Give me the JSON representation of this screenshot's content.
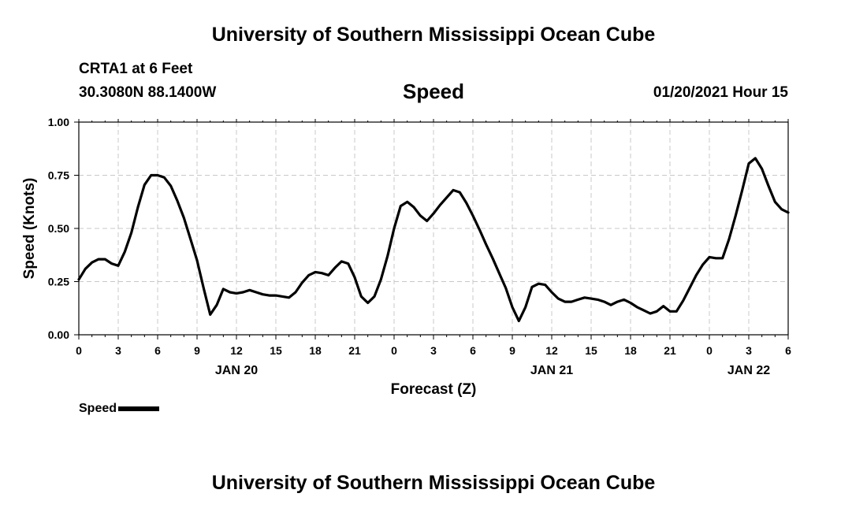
{
  "header": {
    "title": "University of Southern Mississippi Ocean Cube",
    "station": "CRTA1 at 6 Feet",
    "coordinates": "30.3080N 88.1400W",
    "variable": "Speed",
    "datetime": "01/20/2021 Hour 15"
  },
  "footer": {
    "title": "University of Southern Mississippi Ocean Cube"
  },
  "legend": {
    "label": "Speed",
    "placement": "bottom-left"
  },
  "chart_data": {
    "type": "line",
    "title": "Speed",
    "xlabel": "Forecast (Z)",
    "ylabel": "Speed (Knots)",
    "ylim": [
      0,
      1
    ],
    "yticks": [
      "0.00",
      "0.25",
      "0.50",
      "0.75",
      "1.00"
    ],
    "xlim_hours": [
      0,
      54
    ],
    "xtick_labels": [
      "0",
      "3",
      "6",
      "9",
      "12",
      "15",
      "18",
      "21",
      "0",
      "3",
      "6",
      "9",
      "12",
      "15",
      "18",
      "21",
      "0",
      "3",
      "6"
    ],
    "date_labels": [
      {
        "hour": 12,
        "label": "JAN 20"
      },
      {
        "hour": 36,
        "label": "JAN 21"
      },
      {
        "hour": 51,
        "label": "JAN 22"
      }
    ],
    "grid": true,
    "line_color": "#000000",
    "series": [
      {
        "name": "Speed",
        "x": [
          0,
          0.5,
          1,
          1.5,
          2,
          2.5,
          3,
          3.5,
          4,
          4.5,
          5,
          5.5,
          6,
          6.5,
          7,
          7.5,
          8,
          8.5,
          9,
          9.5,
          10,
          10.5,
          11,
          11.5,
          12,
          12.5,
          13,
          13.5,
          14,
          14.5,
          15,
          15.5,
          16,
          16.5,
          17,
          17.5,
          18,
          18.5,
          19,
          19.5,
          20,
          20.5,
          21,
          21.5,
          22,
          22.5,
          23,
          23.5,
          24,
          24.5,
          25,
          25.5,
          26,
          26.5,
          27,
          27.5,
          28,
          28.5,
          29,
          29.5,
          30,
          30.5,
          31,
          31.5,
          32,
          32.5,
          33,
          33.5,
          34,
          34.5,
          35,
          35.5,
          36,
          36.5,
          37,
          37.5,
          38,
          38.5,
          39,
          39.5,
          40,
          40.5,
          41,
          41.5,
          42,
          42.5,
          43,
          43.5,
          44,
          44.5,
          45,
          45.5,
          46,
          46.5,
          47,
          47.5,
          48,
          48.5,
          49,
          49.5,
          50,
          50.5,
          51,
          51.5,
          52,
          52.5,
          53,
          53.5,
          54
        ],
        "y": [
          0.26,
          0.31,
          0.34,
          0.355,
          0.355,
          0.335,
          0.325,
          0.39,
          0.48,
          0.6,
          0.705,
          0.75,
          0.75,
          0.74,
          0.7,
          0.63,
          0.55,
          0.45,
          0.35,
          0.22,
          0.095,
          0.14,
          0.215,
          0.2,
          0.195,
          0.2,
          0.21,
          0.2,
          0.19,
          0.185,
          0.185,
          0.18,
          0.175,
          0.2,
          0.245,
          0.28,
          0.295,
          0.29,
          0.28,
          0.315,
          0.345,
          0.335,
          0.27,
          0.18,
          0.15,
          0.18,
          0.26,
          0.37,
          0.5,
          0.605,
          0.625,
          0.6,
          0.56,
          0.535,
          0.57,
          0.61,
          0.645,
          0.68,
          0.67,
          0.62,
          0.56,
          0.495,
          0.425,
          0.36,
          0.29,
          0.22,
          0.13,
          0.065,
          0.13,
          0.225,
          0.24,
          0.235,
          0.2,
          0.17,
          0.155,
          0.155,
          0.165,
          0.175,
          0.17,
          0.165,
          0.155,
          0.14,
          0.155,
          0.165,
          0.15,
          0.13,
          0.115,
          0.1,
          0.11,
          0.135,
          0.11,
          0.11,
          0.16,
          0.22,
          0.28,
          0.33,
          0.365,
          0.36,
          0.36,
          0.45,
          0.56,
          0.68,
          0.805,
          0.83,
          0.78,
          0.7,
          0.625,
          0.59,
          0.575
        ]
      }
    ]
  }
}
